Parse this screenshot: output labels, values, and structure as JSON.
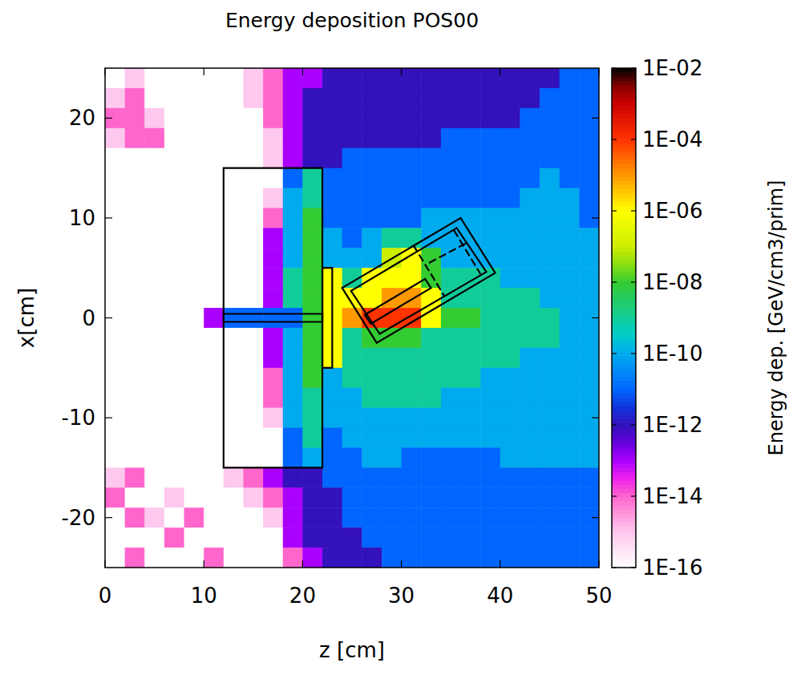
{
  "chart_data": {
    "type": "heatmap",
    "title": "Energy deposition POS00",
    "x_label": "z [cm]",
    "y_label": "x[cm]",
    "xlim": [
      0,
      50
    ],
    "xticks": [
      0,
      10,
      20,
      30,
      40,
      50
    ],
    "ylim": [
      -25,
      25
    ],
    "yticks": [
      -20,
      -10,
      0,
      10,
      20
    ],
    "x": [
      1,
      3,
      5,
      7,
      9,
      11,
      13,
      15,
      17,
      19,
      21,
      23,
      25,
      27,
      29,
      31,
      33,
      35,
      37,
      39,
      41,
      43,
      45,
      47,
      49
    ],
    "y": [
      24,
      22,
      20,
      18,
      16,
      14,
      12,
      10,
      8,
      6,
      4,
      2,
      0,
      -2,
      -4,
      -6,
      -8,
      -10,
      -12,
      -14,
      -16,
      -18,
      -20,
      -22,
      -24
    ],
    "cells": [
      [
        1e-16,
        1e-15,
        1e-16,
        1e-16,
        1e-16,
        1e-16,
        1e-16,
        1e-15,
        1e-14,
        1e-13,
        1e-13,
        1e-12,
        1e-12,
        1e-12,
        1e-12,
        1e-12,
        1e-12,
        1e-12,
        1e-12,
        1e-12,
        1e-12,
        1e-12,
        1e-12,
        1e-11,
        1e-11
      ],
      [
        1e-15,
        1e-14,
        1e-16,
        1e-16,
        1e-16,
        1e-16,
        1e-16,
        1e-15,
        1e-14,
        1e-13,
        1e-12,
        1e-12,
        1e-12,
        1e-12,
        1e-12,
        1e-12,
        1e-12,
        1e-12,
        1e-12,
        1e-12,
        1e-12,
        1e-12,
        1e-11,
        1e-11,
        1e-11
      ],
      [
        1e-14,
        1e-14,
        1e-15,
        1e-16,
        1e-16,
        1e-16,
        1e-16,
        1e-16,
        1e-14,
        1e-13,
        1e-12,
        1e-12,
        1e-12,
        1e-12,
        1e-12,
        1e-12,
        1e-12,
        1e-12,
        1e-12,
        1e-12,
        1e-12,
        1e-11,
        1e-11,
        1e-11,
        1e-11
      ],
      [
        1e-15,
        1e-14,
        1e-14,
        1e-16,
        1e-16,
        1e-16,
        1e-16,
        1e-16,
        1e-15,
        1e-13,
        1e-12,
        1e-12,
        1e-12,
        1e-12,
        1e-12,
        1e-12,
        1e-12,
        1e-11,
        1e-11,
        1e-11,
        1e-11,
        1e-11,
        1e-11,
        1e-11,
        1e-11
      ],
      [
        1e-16,
        1e-16,
        1e-16,
        1e-16,
        1e-16,
        1e-16,
        1e-16,
        1e-16,
        1e-15,
        1e-13,
        1e-12,
        1e-12,
        1e-11,
        1e-11,
        1e-11,
        1e-11,
        1e-11,
        1e-11,
        1e-11,
        1e-11,
        1e-11,
        1e-11,
        1e-11,
        1e-11,
        1e-11
      ],
      [
        1e-16,
        1e-16,
        1e-16,
        1e-16,
        1e-16,
        1e-16,
        1e-16,
        1e-16,
        1e-16,
        1e-11,
        1e-09,
        1e-11,
        1e-11,
        1e-11,
        1e-11,
        1e-11,
        1e-11,
        1e-11,
        1e-11,
        1e-11,
        1e-11,
        1e-11,
        1e-10,
        1e-11,
        1e-11
      ],
      [
        1e-16,
        1e-16,
        1e-16,
        1e-16,
        1e-16,
        1e-16,
        1e-16,
        1e-16,
        1e-15,
        1e-10,
        1e-09,
        1e-11,
        1e-11,
        1e-11,
        1e-11,
        1e-11,
        1e-11,
        1e-11,
        1e-11,
        1e-11,
        1e-11,
        1e-10,
        1e-10,
        1e-10,
        1e-11
      ],
      [
        1e-16,
        1e-16,
        1e-16,
        1e-16,
        1e-16,
        1e-16,
        1e-16,
        1e-16,
        1e-14,
        1e-10,
        1e-08,
        1e-11,
        1e-11,
        1e-11,
        1e-11,
        1e-11,
        1e-10,
        1e-10,
        1e-10,
        1e-10,
        1e-10,
        1e-10,
        1e-10,
        1e-10,
        1e-11
      ],
      [
        1e-16,
        1e-16,
        1e-16,
        1e-16,
        1e-16,
        1e-16,
        1e-16,
        1e-16,
        1e-13,
        1e-10,
        1e-08,
        1e-10,
        1e-11,
        1e-10,
        1e-09,
        1e-09,
        1e-10,
        1e-10,
        1e-10,
        1e-10,
        1e-10,
        1e-10,
        1e-10,
        1e-10,
        1e-10
      ],
      [
        1e-16,
        1e-16,
        1e-16,
        1e-16,
        1e-16,
        1e-16,
        1e-16,
        1e-16,
        1e-13,
        1e-10,
        1e-08,
        1e-10,
        1e-10,
        1e-10,
        1e-07,
        1e-06,
        1e-08,
        1e-10,
        1e-10,
        1e-10,
        1e-10,
        1e-10,
        1e-10,
        1e-10,
        1e-10
      ],
      [
        1e-16,
        1e-16,
        1e-16,
        1e-16,
        1e-16,
        1e-16,
        1e-16,
        1e-16,
        1e-13,
        1e-09,
        1e-08,
        1e-06,
        1e-09,
        1e-06,
        1e-06,
        1e-06,
        1e-08,
        1e-09,
        1e-09,
        1e-09,
        1e-10,
        1e-10,
        1e-10,
        1e-10,
        1e-10
      ],
      [
        1e-16,
        1e-16,
        1e-16,
        1e-16,
        1e-16,
        1e-16,
        1e-16,
        1e-16,
        1e-13,
        1e-09,
        1e-08,
        1e-06,
        1e-06,
        1e-06,
        1e-05,
        1e-05,
        1e-06,
        1e-09,
        1e-09,
        1e-09,
        1e-09,
        1e-09,
        1e-10,
        1e-10,
        1e-10
      ],
      [
        1e-16,
        1e-16,
        1e-16,
        1e-16,
        1e-16,
        1e-13,
        1e-11,
        1e-11,
        1e-11,
        1e-11,
        1e-08,
        1e-06,
        1e-05,
        0.0001,
        0.0001,
        0.0001,
        1e-06,
        1e-08,
        1e-08,
        1e-09,
        1e-09,
        1e-09,
        1e-09,
        1e-10,
        1e-10
      ],
      [
        1e-16,
        1e-16,
        1e-16,
        1e-16,
        1e-16,
        1e-16,
        1e-16,
        1e-16,
        1e-13,
        1e-10,
        1e-08,
        1e-06,
        1e-09,
        1e-08,
        1e-08,
        1e-08,
        1e-09,
        1e-09,
        1e-09,
        1e-09,
        1e-09,
        1e-09,
        1e-09,
        1e-10,
        1e-10
      ],
      [
        1e-16,
        1e-16,
        1e-16,
        1e-16,
        1e-16,
        1e-16,
        1e-16,
        1e-16,
        1e-13,
        1e-10,
        1e-08,
        1e-06,
        1e-09,
        1e-09,
        1e-09,
        1e-09,
        1e-09,
        1e-09,
        1e-09,
        1e-09,
        1e-09,
        1e-10,
        1e-10,
        1e-10,
        1e-10
      ],
      [
        1e-16,
        1e-16,
        1e-16,
        1e-16,
        1e-16,
        1e-16,
        1e-16,
        1e-16,
        1e-14,
        1e-10,
        1e-08,
        1e-10,
        1e-09,
        1e-09,
        1e-09,
        1e-09,
        1e-09,
        1e-09,
        1e-09,
        1e-10,
        1e-10,
        1e-10,
        1e-10,
        1e-10,
        1e-10
      ],
      [
        1e-16,
        1e-16,
        1e-16,
        1e-16,
        1e-16,
        1e-16,
        1e-16,
        1e-16,
        1e-14,
        1e-10,
        1e-09,
        1e-10,
        1e-10,
        1e-09,
        1e-09,
        1e-09,
        1e-09,
        1e-10,
        1e-10,
        1e-10,
        1e-10,
        1e-10,
        1e-10,
        1e-10,
        1e-10
      ],
      [
        1e-16,
        1e-16,
        1e-16,
        1e-16,
        1e-16,
        1e-16,
        1e-16,
        1e-16,
        1e-15,
        1e-10,
        1e-09,
        1e-10,
        1e-10,
        1e-10,
        1e-10,
        1e-10,
        1e-10,
        1e-10,
        1e-10,
        1e-10,
        1e-10,
        1e-10,
        1e-10,
        1e-10,
        1e-10
      ],
      [
        1e-16,
        1e-16,
        1e-16,
        1e-16,
        1e-16,
        1e-16,
        1e-16,
        1e-16,
        1e-16,
        1e-11,
        1e-09,
        1e-11,
        1e-10,
        1e-10,
        1e-10,
        1e-10,
        1e-10,
        1e-10,
        1e-10,
        1e-10,
        1e-10,
        1e-10,
        1e-10,
        1e-10,
        1e-10
      ],
      [
        1e-16,
        1e-16,
        1e-16,
        1e-16,
        1e-16,
        1e-16,
        1e-16,
        1e-16,
        1e-16,
        1e-11,
        1e-10,
        1e-11,
        1e-11,
        1e-10,
        1e-10,
        1e-11,
        1e-11,
        1e-11,
        1e-11,
        1e-11,
        1e-10,
        1e-10,
        1e-10,
        1e-10,
        1e-10
      ],
      [
        1e-15,
        1e-14,
        1e-16,
        1e-16,
        1e-16,
        1e-16,
        1e-15,
        1e-14,
        1e-13,
        1e-12,
        1e-12,
        1e-11,
        1e-11,
        1e-11,
        1e-11,
        1e-11,
        1e-11,
        1e-11,
        1e-11,
        1e-11,
        1e-11,
        1e-11,
        1e-11,
        1e-11,
        1e-11
      ],
      [
        1e-14,
        1e-16,
        1e-16,
        1e-15,
        1e-16,
        1e-16,
        1e-16,
        1e-15,
        1e-14,
        1e-13,
        1e-12,
        1e-12,
        1e-11,
        1e-11,
        1e-11,
        1e-11,
        1e-11,
        1e-11,
        1e-11,
        1e-11,
        1e-11,
        1e-11,
        1e-11,
        1e-11,
        1e-11
      ],
      [
        1e-16,
        1e-14,
        1e-15,
        1e-16,
        1e-14,
        1e-16,
        1e-16,
        1e-16,
        1e-15,
        1e-13,
        1e-12,
        1e-12,
        1e-11,
        1e-11,
        1e-11,
        1e-11,
        1e-11,
        1e-11,
        1e-11,
        1e-11,
        1e-11,
        1e-11,
        1e-11,
        1e-11,
        1e-11
      ],
      [
        1e-16,
        1e-16,
        1e-16,
        1e-14,
        1e-16,
        1e-16,
        1e-16,
        1e-16,
        1e-16,
        1e-13,
        1e-12,
        1e-12,
        1e-12,
        1e-11,
        1e-11,
        1e-11,
        1e-11,
        1e-11,
        1e-11,
        1e-11,
        1e-11,
        1e-11,
        1e-11,
        1e-11,
        1e-11
      ],
      [
        1e-16,
        1e-14,
        1e-16,
        1e-16,
        1e-16,
        1e-14,
        1e-16,
        1e-16,
        1e-16,
        1e-14,
        1e-13,
        1e-12,
        1e-12,
        1e-12,
        1e-11,
        1e-11,
        1e-11,
        1e-11,
        1e-11,
        1e-11,
        1e-11,
        1e-11,
        1e-11,
        1e-11,
        1e-11
      ]
    ],
    "colorbar": {
      "label": "Energy dep. [GeV/cm3/prim]",
      "log": true,
      "range": [
        1e-16,
        0.01
      ],
      "ticks": [
        {
          "value": 0.01,
          "label": "1E-02"
        },
        {
          "value": 0.0001,
          "label": "1E-04"
        },
        {
          "value": 1e-06,
          "label": "1E-06"
        },
        {
          "value": 1e-08,
          "label": "1E-08"
        },
        {
          "value": 1e-10,
          "label": "1E-10"
        },
        {
          "value": 1e-12,
          "label": "1E-12"
        },
        {
          "value": 1e-14,
          "label": "1E-14"
        },
        {
          "value": 1e-16,
          "label": "1E-16"
        }
      ]
    },
    "outlines": [
      [
        [
          12,
          -15
        ],
        [
          22,
          -15
        ],
        [
          22,
          15
        ],
        [
          12,
          15
        ]
      ],
      [
        [
          22,
          -5
        ],
        [
          23,
          -5
        ],
        [
          23,
          5
        ],
        [
          22,
          5
        ]
      ],
      [
        [
          12,
          -0.4
        ],
        [
          22,
          -0.4
        ],
        [
          22,
          0.4
        ],
        [
          12,
          0.4
        ]
      ],
      [
        [
          24,
          3
        ],
        [
          36,
          10
        ],
        [
          39.5,
          4.5
        ],
        [
          27.5,
          -2.5
        ]
      ],
      [
        [
          24.9,
          2.7
        ],
        [
          35.6,
          9.0
        ],
        [
          38.6,
          4.6
        ],
        [
          27.8,
          -1.6
        ]
      ],
      [
        [
          26.3,
          0.3
        ],
        [
          32.4,
          3.9
        ],
        [
          33.0,
          3.0
        ],
        [
          26.9,
          -0.6
        ]
      ]
    ],
    "lines": [
      [
        [
          31.2,
          7.3
        ],
        [
          34.4,
          2.1
        ]
      ],
      [
        [
          35.3,
          8.8
        ],
        [
          38.0,
          4.4
        ]
      ],
      [
        [
          32.8,
          5.5
        ],
        [
          36.6,
          7.5
        ]
      ]
    ]
  }
}
